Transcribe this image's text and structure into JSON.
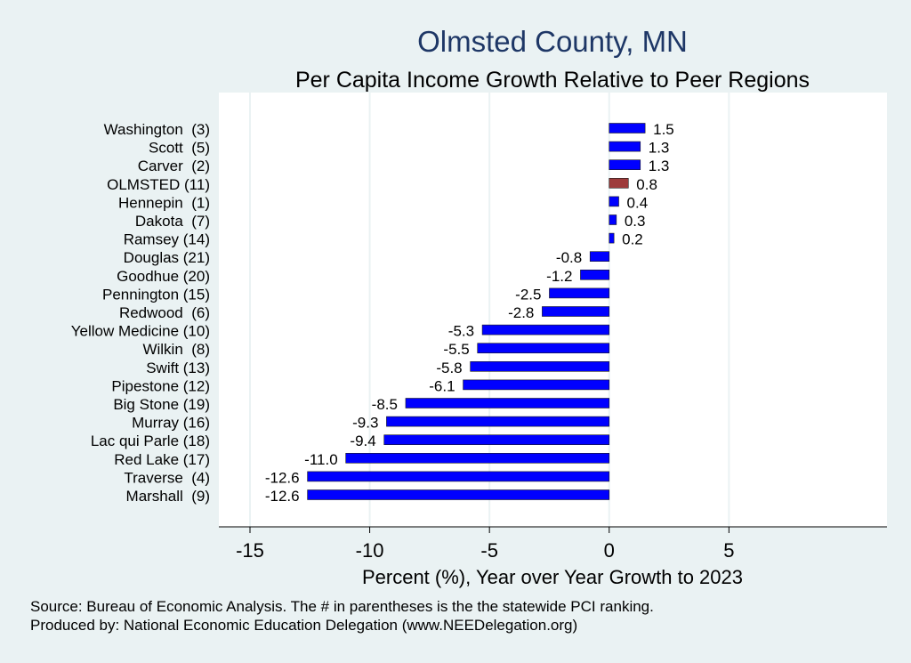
{
  "chart_data": {
    "type": "bar",
    "orientation": "horizontal",
    "title": "Olmsted County, MN",
    "subtitle": "Per Capita Income Growth Relative to Peer Regions",
    "xlabel": "Percent (%), Year over Year Growth to 2023",
    "ylabel": "",
    "xlim": [
      -16.3,
      11.6
    ],
    "xticks": [
      "-15",
      "-10",
      "-5",
      "0",
      "5"
    ],
    "xtick_values": [
      -15,
      -10,
      -5,
      0,
      5
    ],
    "grid": "vertical",
    "categories": [
      "Washington  (3)",
      "Scott  (5)",
      "Carver  (2)",
      "OLMSTED (11)",
      "Hennepin  (1)",
      "Dakota  (7)",
      "Ramsey (14)",
      "Douglas (21)",
      "Goodhue (20)",
      "Pennington (15)",
      "Redwood  (6)",
      "Yellow Medicine (10)",
      "Wilkin  (8)",
      "Swift (13)",
      "Pipestone (12)",
      "Big Stone (19)",
      "Murray (16)",
      "Lac qui Parle (18)",
      "Red Lake (17)",
      "Traverse  (4)",
      "Marshall  (9)"
    ],
    "values": [
      1.5,
      1.3,
      1.3,
      0.8,
      0.4,
      0.3,
      0.2,
      -0.8,
      -1.2,
      -2.5,
      -2.8,
      -5.3,
      -5.5,
      -5.8,
      -6.1,
      -8.5,
      -9.3,
      -9.4,
      -11.0,
      -12.6,
      -12.6
    ],
    "labels": [
      "1.5",
      "1.3",
      "1.3",
      "0.8",
      "0.4",
      "0.3",
      "0.2",
      "-0.8",
      "-1.2",
      "-2.5",
      "-2.8",
      "-5.3",
      "-5.5",
      "-5.8",
      "-6.1",
      "-8.5",
      "-9.3",
      "-9.4",
      "-11.0",
      "-12.6",
      "-12.6"
    ],
    "highlight_index": 3,
    "colors": {
      "bar": "#0000ff",
      "highlight": "#9e3b3b",
      "plot_bg": "#ffffff",
      "page_bg": "#eaf2f3",
      "title": "#1e3766",
      "grid": "#eaf2f3"
    }
  },
  "footer": {
    "source": "Source: Bureau of Economic Analysis. The # in parentheses is the the statewide PCI ranking.",
    "produced": "Produced by: National Economic Education Delegation (www.NEEDelegation.org)"
  }
}
